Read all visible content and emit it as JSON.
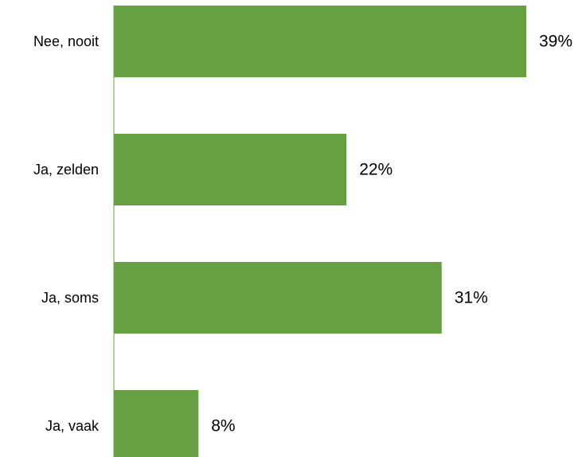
{
  "chart_data": {
    "type": "bar",
    "orientation": "horizontal",
    "categories": [
      "Nee, nooit",
      "Ja, zelden",
      "Ja, soms",
      "Ja, vaak"
    ],
    "values": [
      39,
      22,
      31,
      8
    ],
    "value_labels": [
      "39%",
      "22%",
      "31%",
      "8%"
    ],
    "unit": "%",
    "xlim": [
      0,
      39
    ],
    "bar_color": "#66a042",
    "grid": false,
    "legend": "none"
  }
}
